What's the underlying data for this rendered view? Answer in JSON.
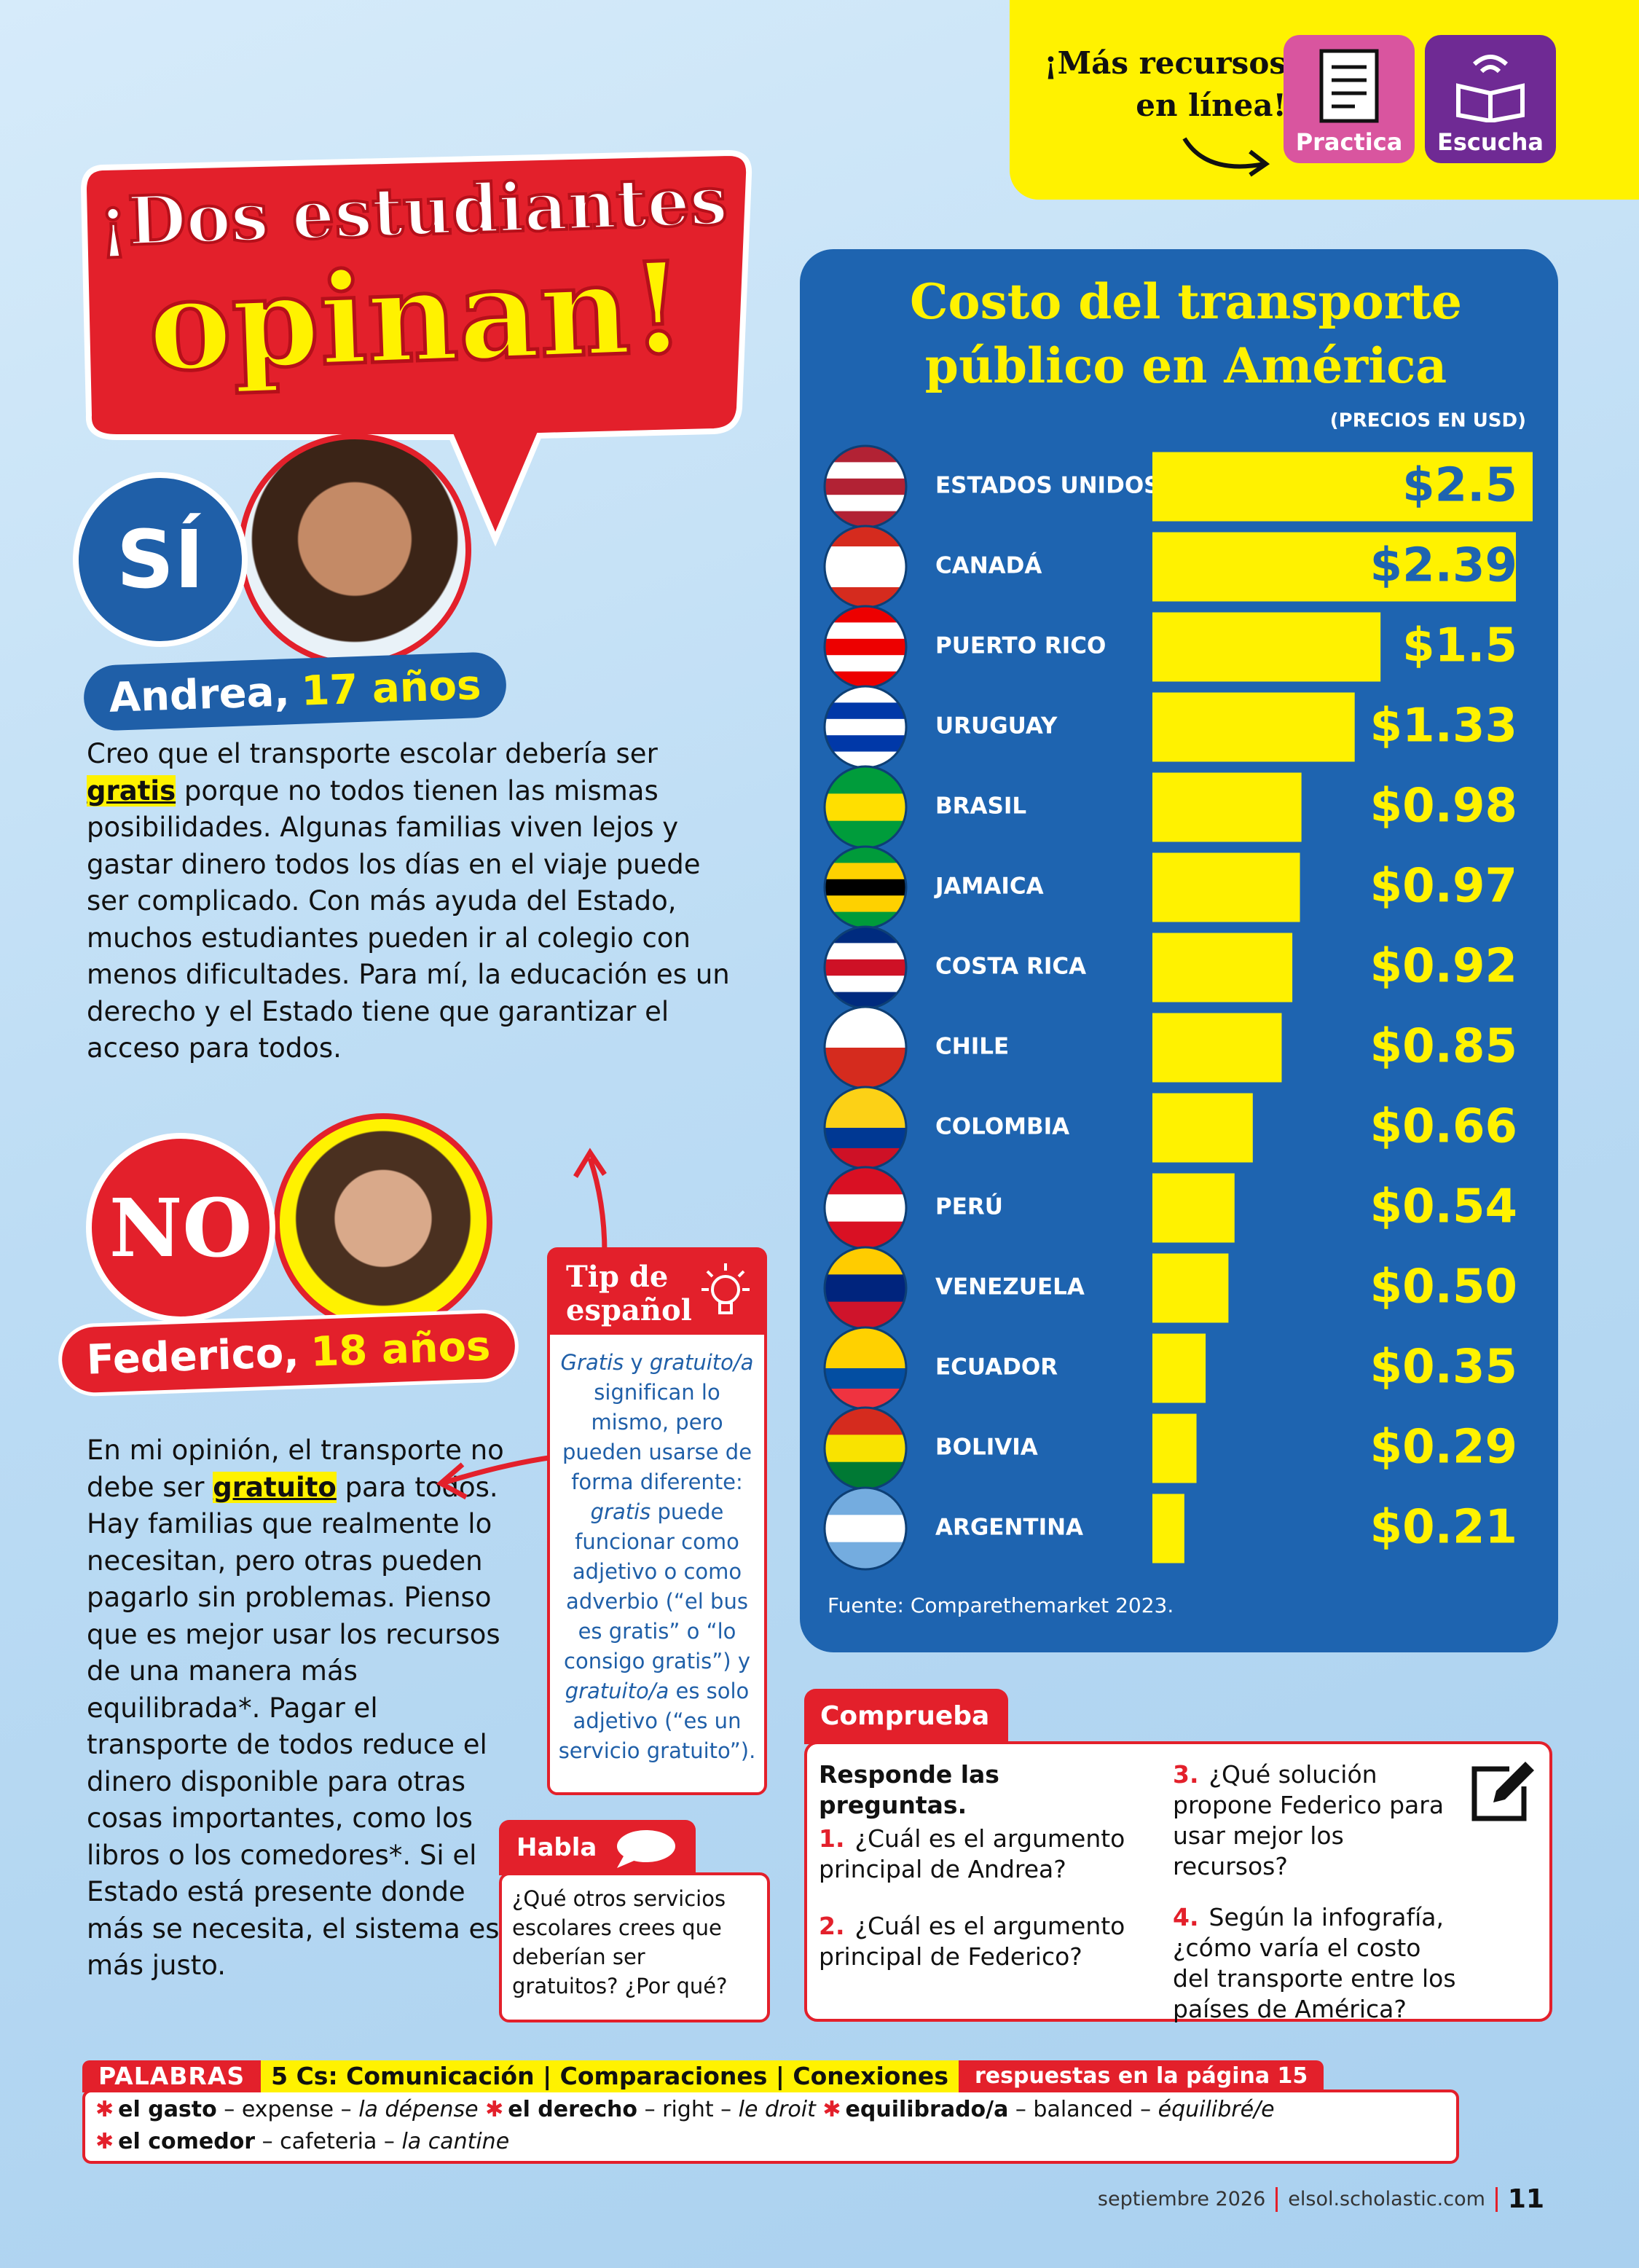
{
  "resources": {
    "line1": "¡Más recursos",
    "line2": "en línea!",
    "buttons": [
      "Practica",
      "Escucha"
    ]
  },
  "headline": {
    "line1": "¡Dos estudiantes",
    "line2": "opinan!"
  },
  "si": {
    "badge": "SÍ",
    "name": "Andrea,",
    "age": "17 años",
    "before": "Creo que el transporte escolar debería ser ",
    "highlight": "gratis",
    "after": " porque no todos tienen las mismas posibilidades. Algunas familias viven lejos y gastar dinero todos los días en el viaje puede ser complicado. Con más ayuda del Estado, muchos estudiantes pueden ir al colegio con menos dificultades. Para mí, la educación es un derecho y el Estado tiene que garantizar el acceso para todos."
  },
  "no": {
    "badge": "NO",
    "name": "Federico,",
    "age": "18 años",
    "before": "En mi opinión, el transporte no debe ser ",
    "highlight": "gratuito",
    "after": " para todos. Hay familias que realmente lo necesitan, pero otras pueden pagarlo sin problemas. Pienso que es mejor usar los recursos de una manera más equilibrada*. Pagar el transporte de todos reduce el dinero disponible para otras cosas importantes, como los libros o los comedores*. Si el Estado está presente donde más se necesita, el sistema es más justo."
  },
  "tip": {
    "title1": "Tip de",
    "title2": "español",
    "body": [
      "Gratis",
      " y ",
      "gratuito/a",
      " significan lo mismo, pero pueden usarse de forma diferente: ",
      "gratis",
      " puede funcionar como adjetivo o como adverbio (“el bus es gratis” o “lo consigo gratis”) y ",
      "gratuito/a",
      " es solo adjetivo (“es un servicio gratuito”)."
    ]
  },
  "habla": {
    "title": "Habla",
    "text": "¿Qué otros servicios escolares crees que deberían ser gratuitos? ¿Por qué?"
  },
  "chart_data": {
    "type": "bar",
    "orientation": "horizontal",
    "title": "Costo del transporte público en América",
    "subtitle": "(PRECIOS EN USD)",
    "categories": [
      "ESTADOS UNIDOS",
      "CANADÁ",
      "PUERTO RICO",
      "URUGUAY",
      "BRASIL",
      "JAMAICA",
      "COSTA RICA",
      "CHILE",
      "COLOMBIA",
      "PERÚ",
      "VENEZUELA",
      "ECUADOR",
      "BOLIVIA",
      "ARGENTINA"
    ],
    "values": [
      2.5,
      2.39,
      1.5,
      1.33,
      0.98,
      0.97,
      0.92,
      0.85,
      0.66,
      0.54,
      0.5,
      0.35,
      0.29,
      0.21
    ],
    "value_labels": [
      "$2.5",
      "$2.39",
      "$1.5",
      "$1.33",
      "$0.98",
      "$0.97",
      "$0.92",
      "$0.85",
      "$0.66",
      "$0.54",
      "$0.50",
      "$0.35",
      "$0.29",
      "$0.21"
    ],
    "color": "#fff200",
    "xlim": [
      0,
      2.5
    ],
    "source": "Fuente: Comparethemarket 2023."
  },
  "comprueba": {
    "title": "Comprueba",
    "intro": "Responde las preguntas.",
    "questions": [
      {
        "num": "1.",
        "text": "¿Cuál es el argumento principal de Andrea?"
      },
      {
        "num": "2.",
        "text": "¿Cuál es el argumento principal de Federico?"
      },
      {
        "num": "3.",
        "text": "¿Qué solución propone Federico para usar mejor los recursos?"
      },
      {
        "num": "4.",
        "text": "Según la infografía, ¿cómo varía el costo del transporte entre los países de América?"
      }
    ]
  },
  "palabras": {
    "label": "PALABRAS",
    "cs": "5 Cs: Comunicación | Comparaciones | Conexiones",
    "answers": "respuestas en la página 15",
    "entries": [
      {
        "term": "el gasto",
        "gloss": " – expense – ",
        "french": "la dépense"
      },
      {
        "term": "el derecho",
        "gloss": " – right – ",
        "french": "le droit"
      },
      {
        "term": "equilibrado/a",
        "gloss": " – balanced – ",
        "french": "équilibré/e"
      },
      {
        "term": "el comedor",
        "gloss": " – cafeteria – ",
        "french": "la cantine"
      }
    ]
  },
  "footer": {
    "date": "septiembre 2026",
    "site": "elsol.scholastic.com",
    "page": "11"
  }
}
